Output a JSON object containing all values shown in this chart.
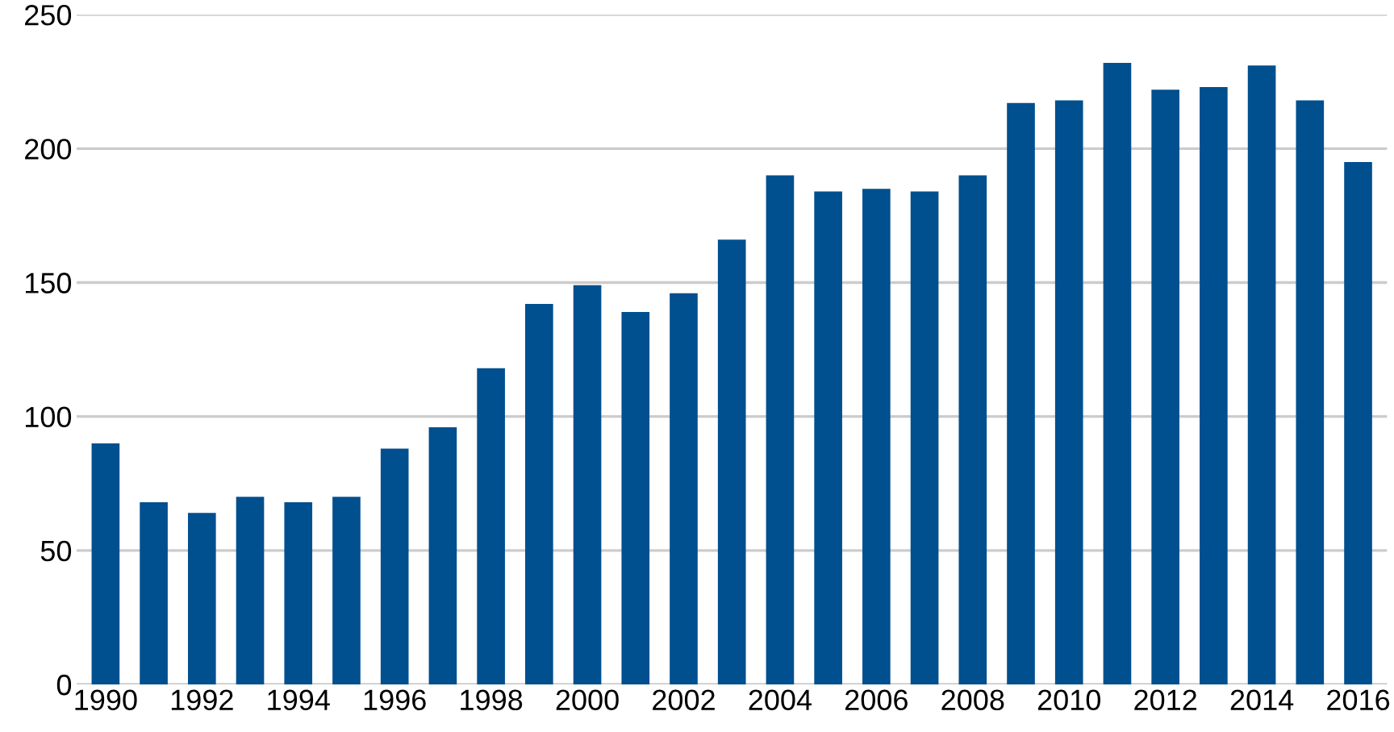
{
  "chart_data": {
    "type": "bar",
    "categories": [
      "1990",
      null,
      "1992",
      null,
      "1994",
      null,
      "1996",
      null,
      "1998",
      null,
      "2000",
      null,
      "2002",
      null,
      "2004",
      null,
      "2006",
      null,
      "2008",
      null,
      "2010",
      null,
      "2012",
      null,
      "2014",
      null,
      "2016"
    ],
    "values": [
      90,
      68,
      64,
      70,
      68,
      70,
      88,
      96,
      118,
      142,
      149,
      139,
      146,
      166,
      190,
      184,
      185,
      184,
      190,
      217,
      218,
      232,
      222,
      223,
      231,
      218,
      195
    ],
    "color": "#004f8f",
    "ylim": [
      0,
      250
    ],
    "yticks": [
      0,
      50,
      100,
      150,
      200,
      250
    ],
    "grid": "y"
  }
}
